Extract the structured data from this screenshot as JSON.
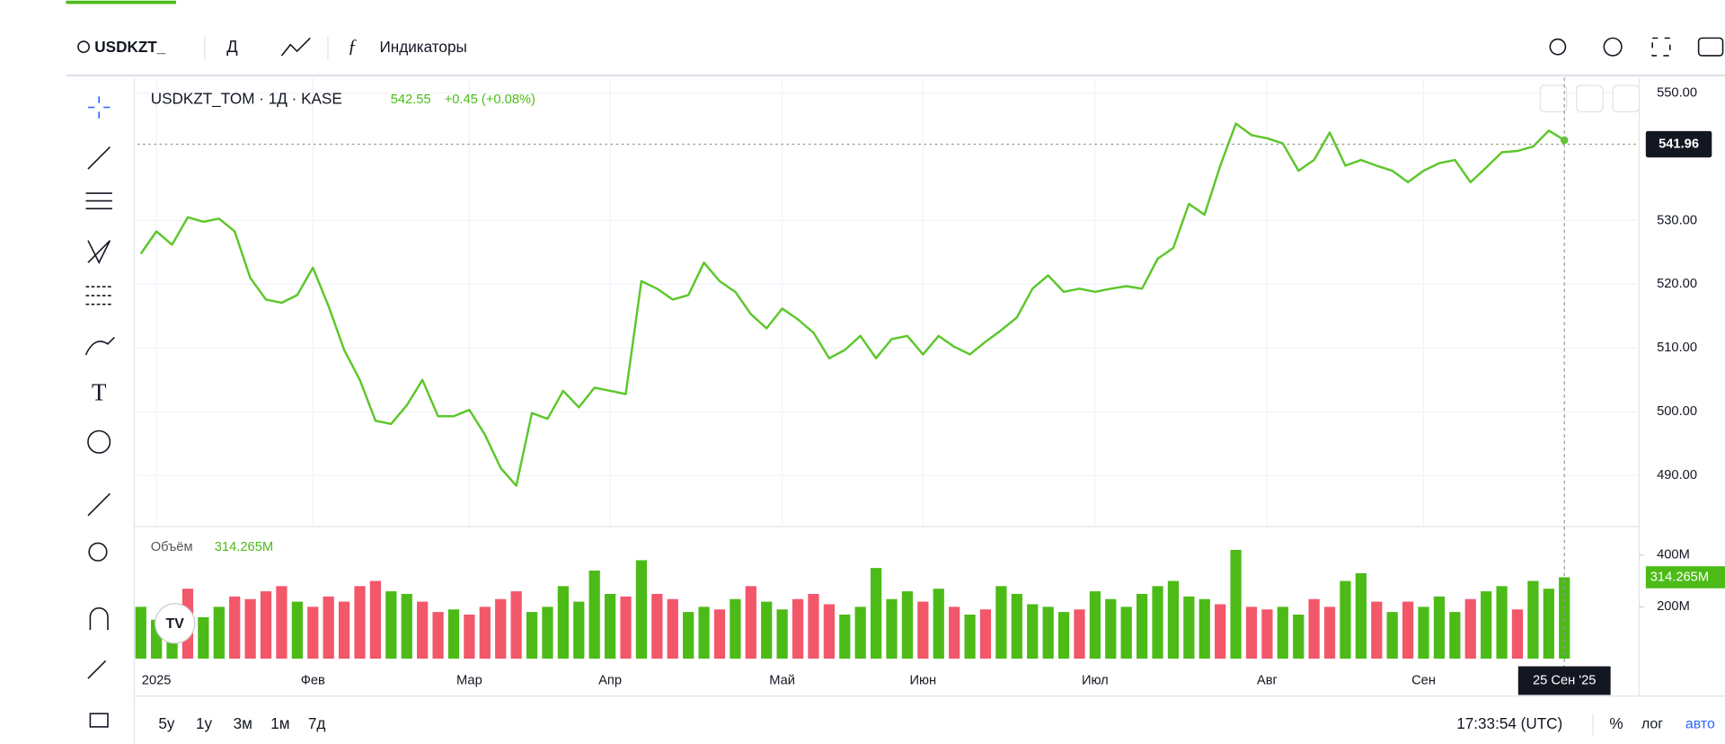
{
  "toolbar": {
    "symbol": "USDKZT_",
    "interval": "Д",
    "indicators": "Индикаторы"
  },
  "chart_data": [
    {
      "type": "line",
      "title": "USDKZT_TOM · 1Д · KASE",
      "last_price": "542.55",
      "change": "+0.45 (+0.08%)",
      "color": "#5cc72a",
      "grid": true,
      "price_line": 541.96,
      "categories": [
        null,
        "2025",
        null,
        null,
        null,
        null,
        null,
        null,
        null,
        null,
        null,
        "Фев",
        null,
        null,
        null,
        null,
        null,
        null,
        null,
        null,
        null,
        "Мар",
        null,
        null,
        null,
        null,
        null,
        null,
        null,
        null,
        "Апр",
        null,
        null,
        null,
        null,
        null,
        null,
        null,
        null,
        null,
        null,
        "Май",
        null,
        null,
        null,
        null,
        null,
        null,
        null,
        null,
        "Июн",
        null,
        null,
        null,
        null,
        null,
        null,
        null,
        null,
        null,
        null,
        "Июл",
        null,
        null,
        null,
        null,
        null,
        null,
        null,
        null,
        null,
        null,
        "Авг",
        null,
        null,
        null,
        null,
        null,
        null,
        null,
        null,
        null,
        "Сен",
        null,
        null,
        null,
        null,
        null,
        null,
        null,
        null,
        "25 Сен '25"
      ],
      "values": [
        524.8,
        528.3,
        526.2,
        530.5,
        529.8,
        530.3,
        528.3,
        521.0,
        517.6,
        517.1,
        518.3,
        522.6,
        516.6,
        509.7,
        505.0,
        498.6,
        498.1,
        501.0,
        505.0,
        499.3,
        499.3,
        500.3,
        496.4,
        491.2,
        488.4,
        499.8,
        498.9,
        503.3,
        500.7,
        503.8,
        503.3,
        502.8,
        520.5,
        519.3,
        517.6,
        518.3,
        523.4,
        520.5,
        518.8,
        515.3,
        513.1,
        516.2,
        514.5,
        512.4,
        508.4,
        509.7,
        511.9,
        508.4,
        511.4,
        511.9,
        509.0,
        511.9,
        510.2,
        509.0,
        511.0,
        512.8,
        514.8,
        519.3,
        521.4,
        518.8,
        519.3,
        518.8,
        519.3,
        519.7,
        519.3,
        524.0,
        525.7,
        532.6,
        530.9,
        538.6,
        545.2,
        543.4,
        542.9,
        542.1,
        537.8,
        539.5,
        543.8,
        538.6,
        539.5,
        538.6,
        537.8,
        536.0,
        537.8,
        539.0,
        539.5,
        536.0,
        538.3,
        540.7,
        540.9,
        541.6,
        544.1,
        542.6
      ],
      "ylim": [
        482,
        552.4
      ],
      "yticks": [
        {
          "value": 490,
          "label": "490.00"
        },
        {
          "value": 500,
          "label": "500.00"
        },
        {
          "value": 510,
          "label": "510.00"
        },
        {
          "value": 520,
          "label": "520.00"
        },
        {
          "value": 530,
          "label": "530.00"
        },
        {
          "value": 550,
          "label": "550.00"
        }
      ]
    },
    {
      "type": "bar",
      "title": "Объём",
      "legend_value": "314.265M",
      "values": [
        200,
        150,
        180,
        270,
        160,
        200,
        240,
        230,
        260,
        280,
        220,
        200,
        240,
        220,
        280,
        300,
        260,
        250,
        220,
        180,
        190,
        170,
        200,
        230,
        260,
        180,
        200,
        280,
        220,
        340,
        250,
        240,
        380,
        250,
        230,
        180,
        200,
        190,
        230,
        280,
        220,
        190,
        230,
        250,
        210,
        170,
        200,
        350,
        230,
        260,
        220,
        270,
        200,
        170,
        190,
        280,
        250,
        210,
        200,
        180,
        190,
        260,
        230,
        200,
        250,
        280,
        300,
        240,
        230,
        210,
        420,
        200,
        190,
        200,
        170,
        230,
        200,
        300,
        330,
        220,
        180,
        220,
        200,
        240,
        180,
        230,
        260,
        280,
        190,
        300,
        270,
        314.265
      ],
      "colors": [
        "#4cbb17",
        "#4cbb17",
        "#4cbb17",
        "#f2576a",
        "#4cbb17",
        "#4cbb17",
        "#f2576a",
        "#f2576a",
        "#f2576a",
        "#f2576a",
        "#4cbb17",
        "#f2576a",
        "#f2576a",
        "#f2576a",
        "#f2576a",
        "#f2576a",
        "#4cbb17",
        "#4cbb17",
        "#f2576a",
        "#f2576a",
        "#4cbb17",
        "#f2576a",
        "#f2576a",
        "#f2576a",
        "#f2576a",
        "#4cbb17",
        "#4cbb17",
        "#4cbb17",
        "#4cbb17",
        "#4cbb17",
        "#4cbb17",
        "#f2576a",
        "#4cbb17",
        "#f2576a",
        "#f2576a",
        "#4cbb17",
        "#4cbb17",
        "#f2576a",
        "#4cbb17",
        "#f2576a",
        "#4cbb17",
        "#4cbb17",
        "#f2576a",
        "#f2576a",
        "#f2576a",
        "#4cbb17",
        "#4cbb17",
        "#4cbb17",
        "#4cbb17",
        "#4cbb17",
        "#f2576a",
        "#4cbb17",
        "#f2576a",
        "#4cbb17",
        "#f2576a",
        "#4cbb17",
        "#4cbb17",
        "#4cbb17",
        "#4cbb17",
        "#4cbb17",
        "#f2576a",
        "#4cbb17",
        "#4cbb17",
        "#4cbb17",
        "#4cbb17",
        "#4cbb17",
        "#4cbb17",
        "#4cbb17",
        "#4cbb17",
        "#f2576a",
        "#4cbb17",
        "#f2576a",
        "#f2576a",
        "#4cbb17",
        "#4cbb17",
        "#f2576a",
        "#f2576a",
        "#4cbb17",
        "#4cbb17",
        "#f2576a",
        "#4cbb17",
        "#f2576a",
        "#4cbb17",
        "#4cbb17",
        "#4cbb17",
        "#f2576a",
        "#4cbb17",
        "#4cbb17",
        "#f2576a",
        "#4cbb17",
        "#4cbb17",
        "#4cbb17"
      ],
      "ylim": [
        0,
        510
      ],
      "yticks": [
        {
          "value": 200,
          "label": "200M"
        },
        {
          "value": 400,
          "label": "400M"
        }
      ]
    }
  ],
  "timeframes": [
    "5у",
    "1у",
    "3м",
    "1м",
    "7д"
  ],
  "status": {
    "time": "17:33:54 (UTC)",
    "percent": "%",
    "log": "лог",
    "auto": "авто"
  }
}
